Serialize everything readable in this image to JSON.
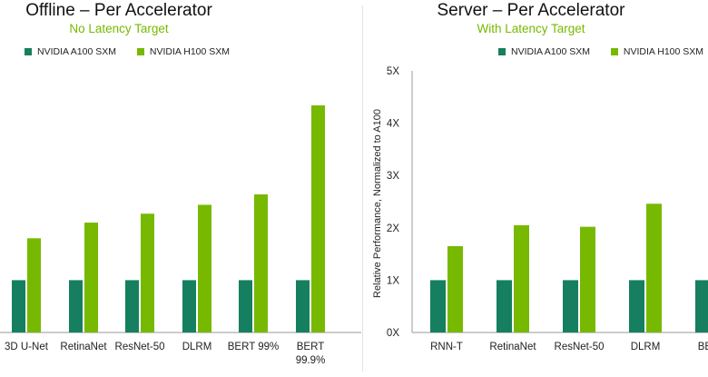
{
  "colors": {
    "a100": "#157f5f",
    "h100": "#76b900",
    "axis": "#9a9a9a"
  },
  "left_panel": {
    "title": "Offline – Per Accelerator",
    "subtitle": "No Latency Target",
    "legend": [
      "NVIDIA A100 SXM",
      "NVIDIA H100 SXM"
    ]
  },
  "right_panel": {
    "title": "Server – Per Accelerator",
    "subtitle": "With Latency Target",
    "legend": [
      "NVIDIA A100 SXM",
      "NVIDIA H100 SXM"
    ]
  },
  "chart_data": [
    {
      "type": "bar",
      "title": "Offline – Per Accelerator",
      "subtitle": "No Latency Target",
      "categories": [
        "3D U-Net",
        "RetinaNet",
        "ResNet-50",
        "DLRM",
        "BERT 99%",
        "BERT 99.9%"
      ],
      "series": [
        {
          "name": "NVIDIA A100 SXM",
          "values": [
            1,
            1,
            1,
            1,
            1,
            1
          ]
        },
        {
          "name": "NVIDIA H100 SXM",
          "values": [
            1.8,
            2.1,
            2.27,
            2.44,
            2.64,
            4.34
          ]
        }
      ],
      "ylim": [
        0,
        5
      ],
      "legend_position": "top",
      "grid": false
    },
    {
      "type": "bar",
      "title": "Server – Per Accelerator",
      "subtitle": "With Latency Target",
      "categories": [
        "RNN-T",
        "RetinaNet",
        "ResNet-50",
        "DLRM",
        "BERT"
      ],
      "series": [
        {
          "name": "NVIDIA A100 SXM",
          "values": [
            1,
            1,
            1,
            1,
            1
          ]
        },
        {
          "name": "NVIDIA H100 SXM",
          "values": [
            1.65,
            2.05,
            2.02,
            2.46,
            null
          ]
        }
      ],
      "ylabel": "Relative Performance, Normalized to A100",
      "yticks": [
        "0X",
        "1X",
        "2X",
        "3X",
        "4X",
        "5X"
      ],
      "ylim": [
        0,
        5
      ],
      "legend_position": "top",
      "grid": false
    }
  ]
}
